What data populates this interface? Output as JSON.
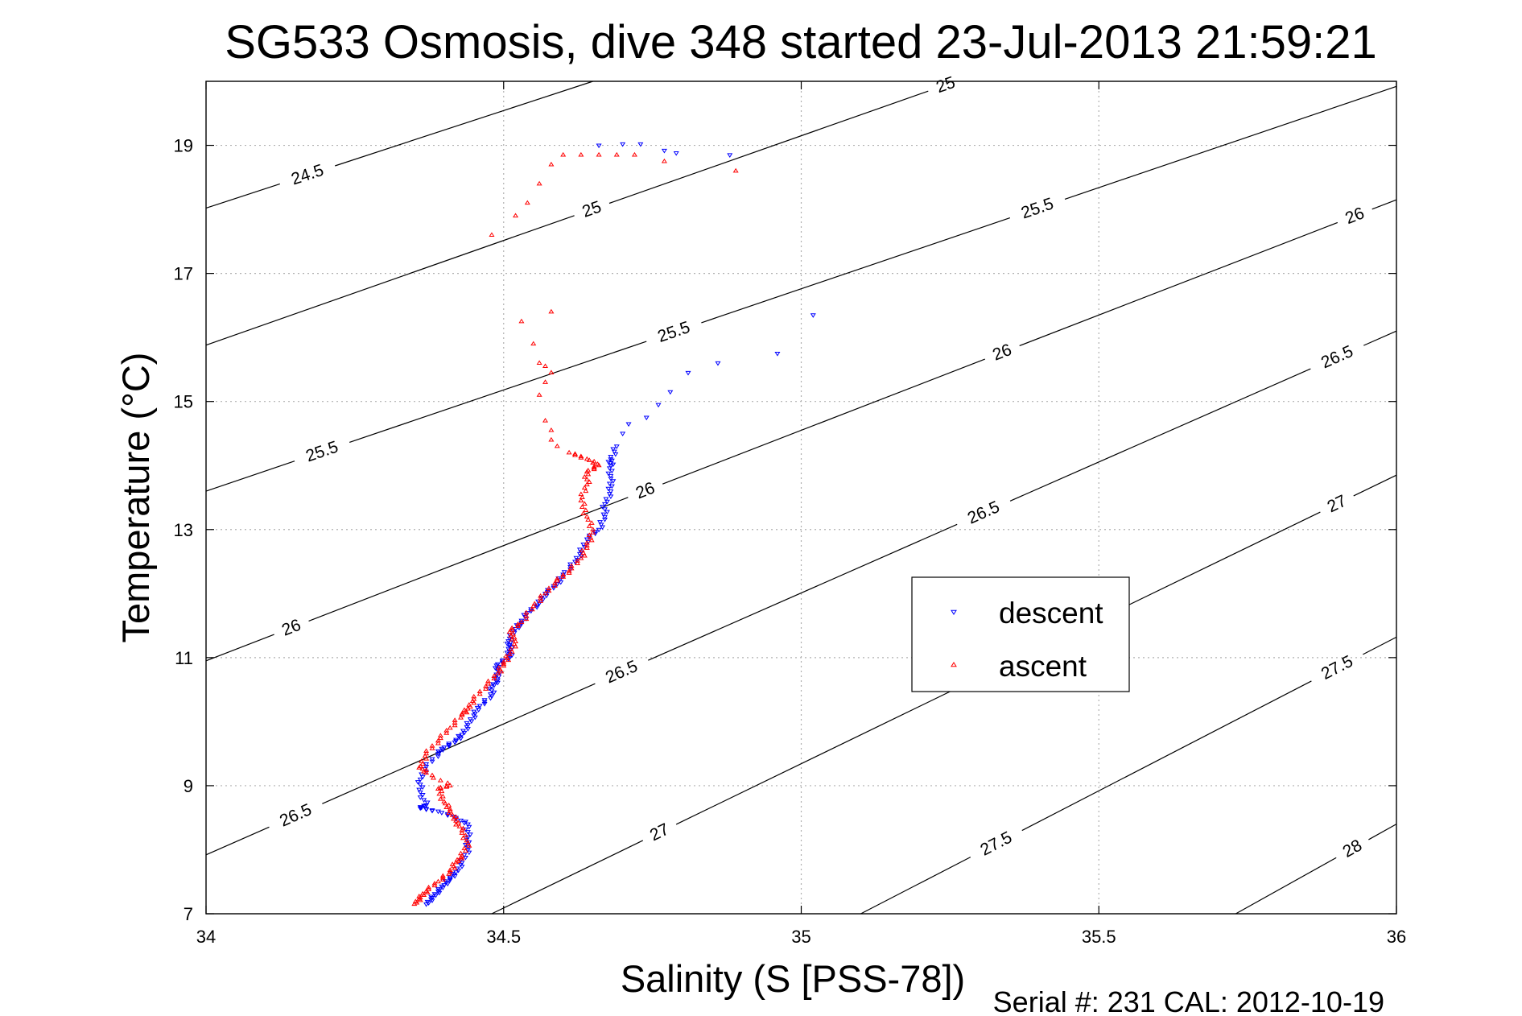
{
  "chart_data": {
    "type": "scatter",
    "title": "SG533 Osmosis, dive 348 started 23-Jul-2013 21:59:21",
    "xlabel": "Salinity (S [PSS-78])",
    "ylabel": "Temperature (°C)",
    "xlim": [
      34,
      36
    ],
    "ylim": [
      7,
      20
    ],
    "xticks": [
      34,
      34.5,
      35,
      35.5,
      36
    ],
    "xtick_labels": [
      "34",
      "34.5",
      "35",
      "35.5",
      "36"
    ],
    "yticks": [
      7,
      9,
      11,
      13,
      15,
      17,
      19
    ],
    "ytick_labels": [
      "7",
      "9",
      "11",
      "13",
      "15",
      "17",
      "19"
    ],
    "grid": true,
    "legend_position": "right-center",
    "footer": "Serial #: 231  CAL: 2012-10-19",
    "colors": {
      "descent": "#0000ff",
      "ascent": "#ff0000",
      "contour": "#000000",
      "grid": "#b0b0b0"
    },
    "contours": [
      {
        "level": "24.5",
        "points": [
          [
            34,
            18.02
          ],
          [
            34.65,
            20
          ]
        ],
        "labels": [
          {
            "text": "24.5",
            "x": 34.17,
            "y": 18.55
          }
        ]
      },
      {
        "level": "25",
        "points": [
          [
            34,
            15.88
          ],
          [
            35.26,
            20
          ]
        ],
        "labels": [
          {
            "text": "25",
            "x": 34.65,
            "y": 17.95
          },
          {
            "text": "25",
            "x": 35.25,
            "y": 19.75
          }
        ]
      },
      {
        "level": "25.5",
        "points": [
          [
            34,
            13.6
          ],
          [
            36,
            19.92
          ]
        ],
        "labels": [
          {
            "text": "25.5",
            "x": 34.19,
            "y": 14.35
          },
          {
            "text": "25.5",
            "x": 34.78,
            "y": 16.25
          },
          {
            "text": "25.5",
            "x": 35.39,
            "y": 18.2
          }
        ]
      },
      {
        "level": "26",
        "points": [
          [
            34,
            10.95
          ],
          [
            36,
            18.15
          ]
        ],
        "labels": [
          {
            "text": "26",
            "x": 34.14,
            "y": 11.55
          },
          {
            "text": "26",
            "x": 34.73,
            "y": 13.8
          },
          {
            "text": "26",
            "x": 35.33,
            "y": 15.95
          },
          {
            "text": "26",
            "x": 35.93,
            "y": 17.9
          }
        ]
      },
      {
        "level": "26.5",
        "points": [
          [
            34,
            7.92
          ],
          [
            36,
            16.1
          ]
        ],
        "labels": [
          {
            "text": "26.5",
            "x": 34.15,
            "y": 8.55
          },
          {
            "text": "26.5",
            "x": 34.69,
            "y": 10.95
          },
          {
            "text": "26.5",
            "x": 35.3,
            "y": 13.4
          },
          {
            "text": "26.5",
            "x": 35.9,
            "y": 15.7
          }
        ]
      },
      {
        "level": "27",
        "points": [
          [
            34.48,
            7
          ],
          [
            36,
            13.85
          ]
        ],
        "labels": [
          {
            "text": "27",
            "x": 34.75,
            "y": 8.5
          },
          {
            "text": "27",
            "x": 35.9,
            "y": 13.4
          }
        ]
      },
      {
        "level": "27.5",
        "points": [
          [
            35.1,
            7
          ],
          [
            36,
            11.32
          ]
        ],
        "labels": [
          {
            "text": "27.5",
            "x": 35.33,
            "y": 8.05
          },
          {
            "text": "27.5",
            "x": 35.9,
            "y": 10.85
          }
        ]
      },
      {
        "level": "28",
        "points": [
          [
            35.73,
            7
          ],
          [
            36,
            8.4
          ]
        ],
        "labels": [
          {
            "text": "28",
            "x": 35.93,
            "y": 7.95
          }
        ]
      }
    ],
    "series": [
      {
        "name": "descent",
        "marker": "triangle-down",
        "points": [
          [
            34.37,
            7.15
          ],
          [
            34.38,
            7.25
          ],
          [
            34.39,
            7.35
          ],
          [
            34.4,
            7.45
          ],
          [
            34.41,
            7.55
          ],
          [
            34.42,
            7.65
          ],
          [
            34.43,
            7.8
          ],
          [
            34.44,
            8.0
          ],
          [
            34.44,
            8.2
          ],
          [
            34.44,
            8.4
          ],
          [
            34.42,
            8.5
          ],
          [
            34.39,
            8.6
          ],
          [
            34.36,
            8.65
          ],
          [
            34.37,
            8.7
          ],
          [
            34.36,
            8.9
          ],
          [
            34.36,
            9.1
          ],
          [
            34.37,
            9.3
          ],
          [
            34.39,
            9.5
          ],
          [
            34.4,
            9.6
          ],
          [
            34.42,
            9.7
          ],
          [
            34.43,
            9.8
          ],
          [
            34.44,
            9.95
          ],
          [
            34.45,
            10.1
          ],
          [
            34.46,
            10.25
          ],
          [
            34.48,
            10.4
          ],
          [
            34.48,
            10.55
          ],
          [
            34.49,
            10.65
          ],
          [
            34.49,
            10.8
          ],
          [
            34.49,
            10.9
          ],
          [
            34.51,
            11.0
          ],
          [
            34.51,
            11.1
          ],
          [
            34.51,
            11.2
          ],
          [
            34.51,
            11.3
          ],
          [
            34.52,
            11.45
          ],
          [
            34.53,
            11.55
          ],
          [
            34.54,
            11.7
          ],
          [
            34.56,
            11.85
          ],
          [
            34.57,
            12.0
          ],
          [
            34.59,
            12.15
          ],
          [
            34.6,
            12.3
          ],
          [
            34.62,
            12.5
          ],
          [
            34.63,
            12.65
          ],
          [
            34.64,
            12.85
          ],
          [
            34.66,
            13.0
          ],
          [
            34.67,
            13.2
          ],
          [
            34.67,
            13.4
          ],
          [
            34.68,
            13.6
          ],
          [
            34.68,
            13.8
          ],
          [
            34.68,
            14.0
          ],
          [
            34.68,
            14.1
          ],
          [
            34.69,
            14.3
          ],
          [
            34.7,
            14.5
          ],
          [
            34.71,
            14.65
          ],
          [
            34.74,
            14.75
          ],
          [
            34.76,
            14.95
          ],
          [
            34.78,
            15.15
          ],
          [
            34.81,
            15.45
          ],
          [
            34.86,
            15.6
          ],
          [
            34.96,
            15.75
          ],
          [
            35.02,
            16.35
          ],
          [
            34.66,
            19.0
          ],
          [
            34.7,
            19.02
          ],
          [
            34.73,
            19.02
          ],
          [
            34.77,
            18.92
          ],
          [
            34.79,
            18.88
          ],
          [
            34.88,
            18.85
          ]
        ]
      },
      {
        "name": "ascent",
        "marker": "triangle-up",
        "points": [
          [
            34.35,
            7.15
          ],
          [
            34.36,
            7.25
          ],
          [
            34.37,
            7.35
          ],
          [
            34.39,
            7.5
          ],
          [
            34.41,
            7.65
          ],
          [
            34.42,
            7.8
          ],
          [
            34.43,
            7.9
          ],
          [
            34.44,
            8.1
          ],
          [
            34.43,
            8.3
          ],
          [
            34.42,
            8.45
          ],
          [
            34.41,
            8.6
          ],
          [
            34.4,
            8.75
          ],
          [
            34.39,
            8.95
          ],
          [
            34.41,
            9.0
          ],
          [
            34.37,
            9.2
          ],
          [
            34.36,
            9.3
          ],
          [
            34.37,
            9.5
          ],
          [
            34.39,
            9.7
          ],
          [
            34.41,
            9.9
          ],
          [
            34.43,
            10.1
          ],
          [
            34.44,
            10.2
          ],
          [
            34.45,
            10.35
          ],
          [
            34.47,
            10.55
          ],
          [
            34.49,
            10.75
          ],
          [
            34.5,
            10.9
          ],
          [
            34.51,
            11.05
          ],
          [
            34.52,
            11.25
          ],
          [
            34.51,
            11.4
          ],
          [
            34.53,
            11.55
          ],
          [
            34.55,
            11.8
          ],
          [
            34.57,
            12.0
          ],
          [
            34.59,
            12.2
          ],
          [
            34.61,
            12.35
          ],
          [
            34.63,
            12.55
          ],
          [
            34.64,
            12.75
          ],
          [
            34.65,
            12.95
          ],
          [
            34.64,
            13.2
          ],
          [
            34.63,
            13.45
          ],
          [
            34.64,
            13.7
          ],
          [
            34.64,
            13.9
          ],
          [
            34.66,
            14.0
          ],
          [
            34.64,
            14.1
          ],
          [
            34.61,
            14.2
          ],
          [
            34.59,
            14.3
          ],
          [
            34.58,
            14.4
          ],
          [
            34.58,
            14.55
          ],
          [
            34.57,
            14.7
          ],
          [
            34.56,
            15.1
          ],
          [
            34.57,
            15.3
          ],
          [
            34.58,
            15.45
          ],
          [
            34.57,
            15.55
          ],
          [
            34.56,
            15.6
          ],
          [
            34.55,
            15.9
          ],
          [
            34.53,
            16.25
          ],
          [
            34.58,
            16.4
          ],
          [
            34.48,
            17.6
          ],
          [
            34.52,
            17.9
          ],
          [
            34.54,
            18.1
          ],
          [
            34.56,
            18.4
          ],
          [
            34.58,
            18.7
          ],
          [
            34.6,
            18.85
          ],
          [
            34.63,
            18.85
          ],
          [
            34.66,
            18.85
          ],
          [
            34.69,
            18.85
          ],
          [
            34.72,
            18.85
          ],
          [
            34.77,
            18.75
          ],
          [
            34.89,
            18.6
          ]
        ]
      }
    ]
  }
}
